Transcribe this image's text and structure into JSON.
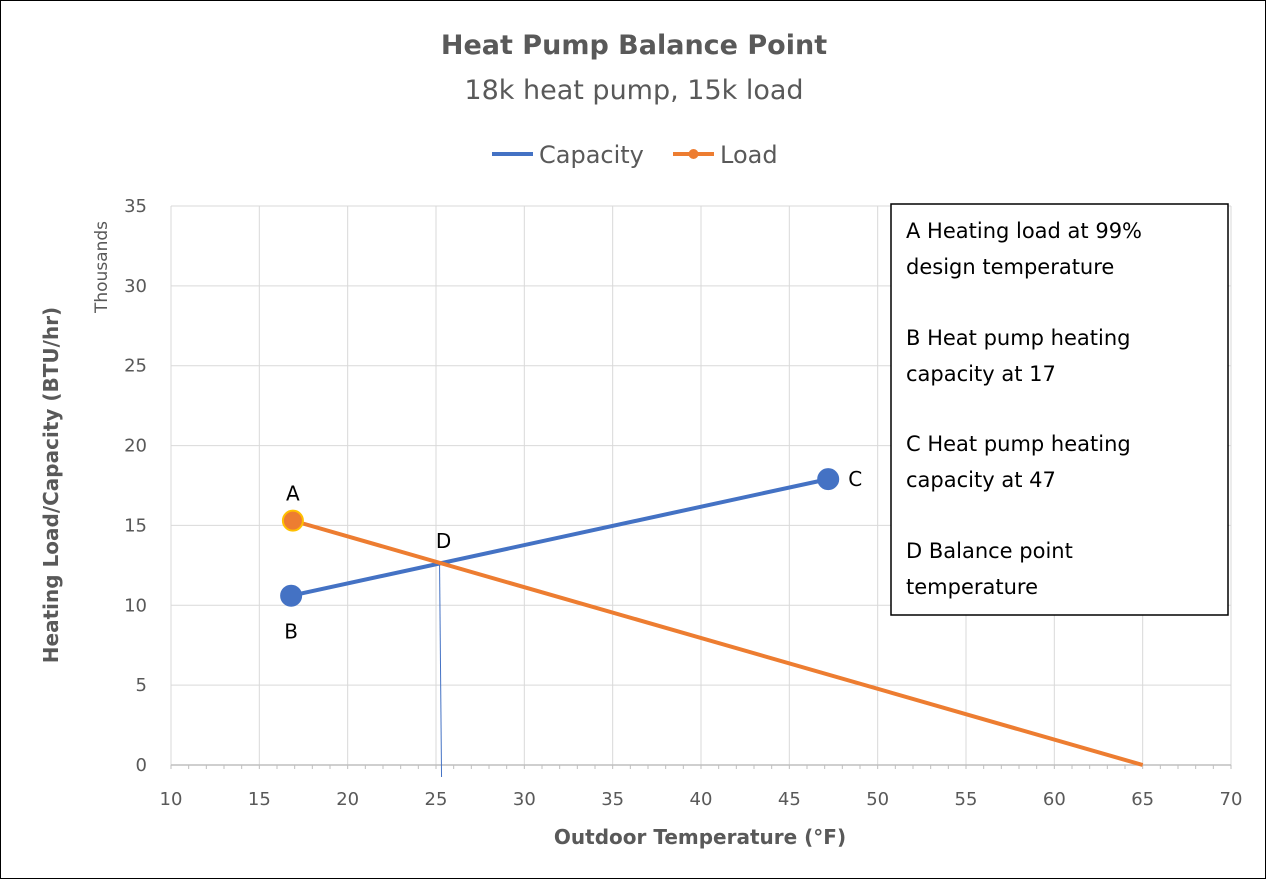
{
  "chart_data": {
    "type": "line",
    "title": "Heat Pump Balance Point",
    "subtitle": "18k heat pump, 15k load",
    "xlabel": "Outdoor Temperature (°F)",
    "ylabel": "Heating Load/Capacity (BTU/hr)",
    "y_units": "Thousands",
    "xlim": [
      10,
      70
    ],
    "ylim": [
      0,
      35
    ],
    "x_ticks": [
      "10",
      "15",
      "20",
      "25",
      "30",
      "35",
      "40",
      "45",
      "50",
      "55",
      "60",
      "65",
      "70"
    ],
    "y_ticks": [
      "0",
      "5",
      "10",
      "15",
      "20",
      "25",
      "30",
      "35"
    ],
    "grid": true,
    "legend_position": "top",
    "series": [
      {
        "name": "Capacity",
        "color": "#4472C4",
        "x": [
          16.8,
          47.2
        ],
        "y": [
          10.6,
          17.9
        ]
      },
      {
        "name": "Load",
        "color": "#ED7D31",
        "x": [
          16.9,
          65
        ],
        "y": [
          15.3,
          0
        ]
      }
    ],
    "markers": [
      {
        "label": "A",
        "series": "Load",
        "x": 16.9,
        "y": 15.3,
        "fill": "#ED7D31",
        "stroke": "#FFC000"
      },
      {
        "label": "B",
        "series": "Capacity",
        "x": 16.8,
        "y": 10.6,
        "fill": "#4472C4",
        "stroke": "#4472C4"
      },
      {
        "label": "C",
        "series": "Capacity",
        "x": 47.2,
        "y": 17.9,
        "fill": "#4472C4",
        "stroke": "#4472C4"
      }
    ],
    "balance_point": {
      "label": "D",
      "x": 25.2,
      "y": 12.7
    },
    "notes": [
      {
        "lines": [
          "A  Heating load at 99%",
          "design temperature"
        ]
      },
      {
        "lines": [
          "B  Heat pump heating",
          "capacity at 17"
        ]
      },
      {
        "lines": [
          "C  Heat pump heating",
          "capacity at 47"
        ]
      },
      {
        "lines": [
          "D  Balance point",
          "temperature"
        ]
      }
    ]
  }
}
